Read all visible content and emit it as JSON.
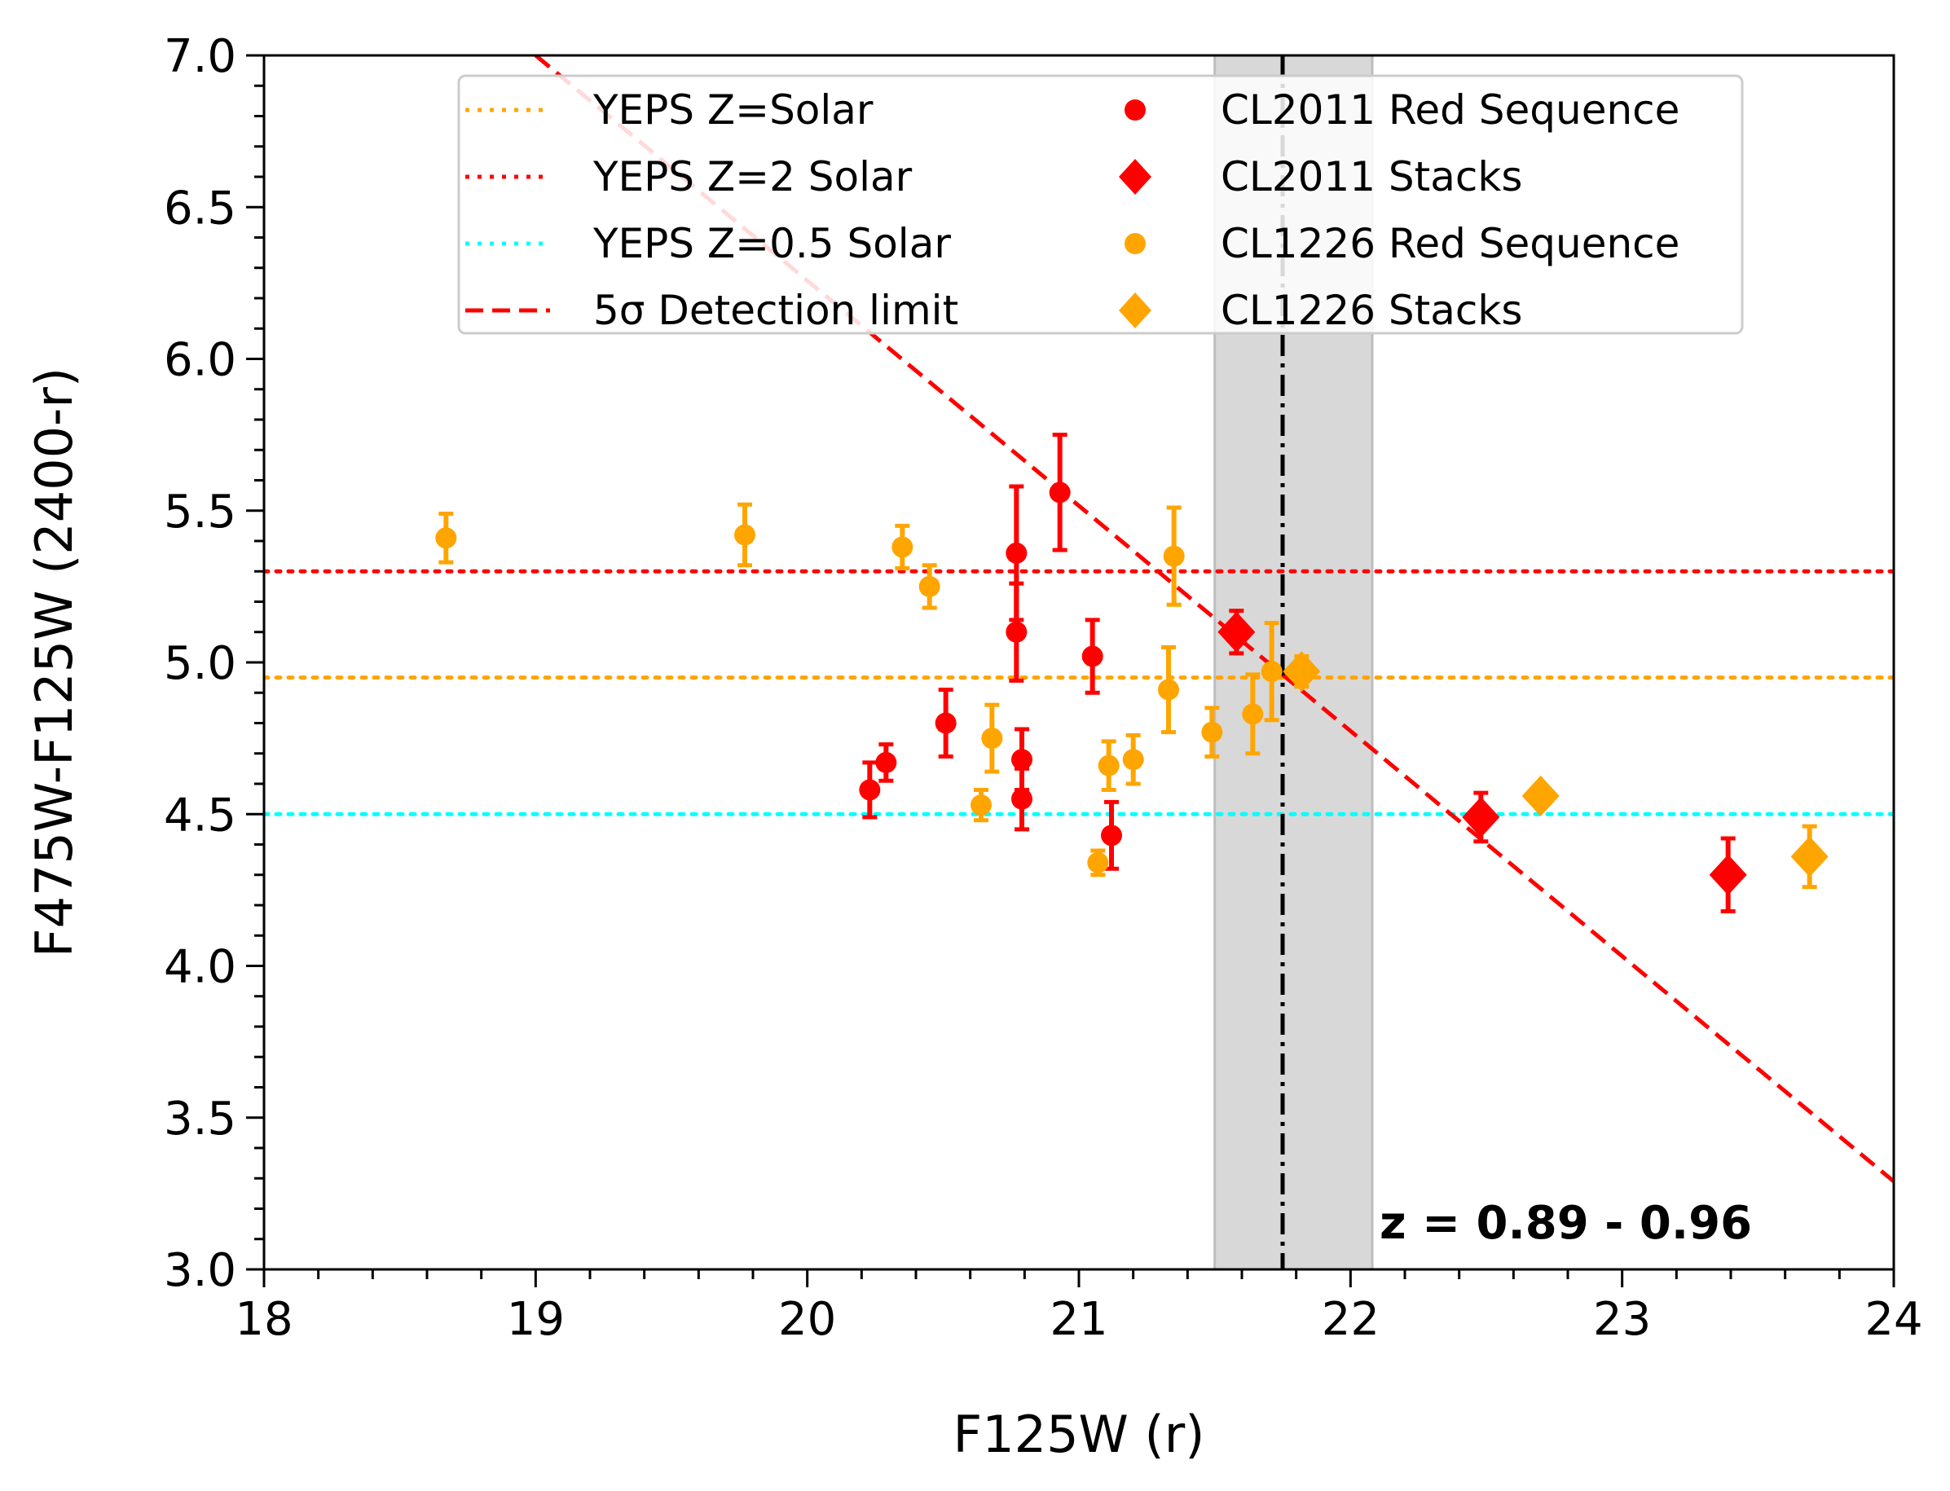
{
  "chart_data": {
    "type": "scatter",
    "xlabel": "F125W (r)",
    "ylabel": "F475W-F125W (2400-r)",
    "xlim": [
      18,
      24
    ],
    "ylim": [
      3.0,
      7.0
    ],
    "x_ticks": [
      "18",
      "19",
      "20",
      "21",
      "22",
      "23",
      "24"
    ],
    "y_ticks": [
      "3.0",
      "3.5",
      "4.0",
      "4.5",
      "5.0",
      "5.5",
      "6.0",
      "6.5",
      "7.0"
    ],
    "annotation": "z = 0.89 - 0.96",
    "redshift_band": {
      "x_start": 21.5,
      "x_end": 22.08,
      "color": "#d8d8d8"
    },
    "vertical_line": {
      "x": 21.75,
      "style": "dashdot",
      "color": "#000000"
    },
    "reference_lines": [
      {
        "name": "YEPS Z=Solar",
        "y": 4.95,
        "color": "#ffa500",
        "style": "dotted"
      },
      {
        "name": "YEPS Z=2 Solar",
        "y": 5.3,
        "color": "#ff0000",
        "style": "dotted"
      },
      {
        "name": "YEPS Z=0.5 Solar",
        "y": 4.5,
        "color": "#00ffff",
        "style": "dotted"
      }
    ],
    "detection_limit": {
      "name": "5σ Detection limit",
      "points": [
        [
          19.0,
          7.0
        ],
        [
          24.0,
          3.29
        ]
      ],
      "color": "#ff0000",
      "style": "dashed"
    },
    "series": [
      {
        "name": "CL2011 Red Sequence",
        "marker": "circle",
        "color": "#ff0000",
        "points": [
          {
            "x": 20.23,
            "y": 4.58,
            "err": 0.09
          },
          {
            "x": 20.29,
            "y": 4.67,
            "err": 0.06
          },
          {
            "x": 20.51,
            "y": 4.8,
            "err": 0.11
          },
          {
            "x": 20.77,
            "y": 5.36,
            "err": 0.22
          },
          {
            "x": 20.77,
            "y": 5.1,
            "err": 0.16
          },
          {
            "x": 20.79,
            "y": 4.68,
            "err": 0.1
          },
          {
            "x": 20.79,
            "y": 4.55,
            "err": 0.1
          },
          {
            "x": 20.93,
            "y": 5.56,
            "err": 0.19
          },
          {
            "x": 21.05,
            "y": 5.02,
            "err": 0.12
          },
          {
            "x": 21.12,
            "y": 4.43,
            "err": 0.11
          }
        ]
      },
      {
        "name": "CL2011 Stacks",
        "marker": "diamond",
        "color": "#ff0000",
        "points": [
          {
            "x": 21.58,
            "y": 5.1,
            "err": 0.07
          },
          {
            "x": 22.48,
            "y": 4.49,
            "err": 0.08
          },
          {
            "x": 23.39,
            "y": 4.3,
            "err": 0.12
          }
        ]
      },
      {
        "name": "CL1226 Red Sequence",
        "marker": "circle",
        "color": "#ffa500",
        "points": [
          {
            "x": 18.67,
            "y": 5.41,
            "err": 0.08
          },
          {
            "x": 19.77,
            "y": 5.42,
            "err": 0.1
          },
          {
            "x": 20.35,
            "y": 5.38,
            "err": 0.07
          },
          {
            "x": 20.45,
            "y": 5.25,
            "err": 0.07
          },
          {
            "x": 20.64,
            "y": 4.53,
            "err": 0.05
          },
          {
            "x": 20.68,
            "y": 4.75,
            "err": 0.11
          },
          {
            "x": 21.07,
            "y": 4.34,
            "err": 0.04
          },
          {
            "x": 21.11,
            "y": 4.66,
            "err": 0.08
          },
          {
            "x": 21.2,
            "y": 4.68,
            "err": 0.08
          },
          {
            "x": 21.33,
            "y": 4.91,
            "err": 0.14
          },
          {
            "x": 21.35,
            "y": 5.35,
            "err": 0.16
          },
          {
            "x": 21.49,
            "y": 4.77,
            "err": 0.08
          },
          {
            "x": 21.64,
            "y": 4.83,
            "err": 0.13
          },
          {
            "x": 21.71,
            "y": 4.97,
            "err": 0.16
          }
        ]
      },
      {
        "name": "CL1226 Stacks",
        "marker": "diamond",
        "color": "#ffa500",
        "points": [
          {
            "x": 21.82,
            "y": 4.97,
            "err": 0.05
          },
          {
            "x": 22.7,
            "y": 4.56,
            "err": 0.03
          },
          {
            "x": 23.69,
            "y": 4.36,
            "err": 0.1
          }
        ]
      }
    ],
    "legend": {
      "position": "upper-center",
      "left_column": [
        "YEPS Z=Solar",
        "YEPS Z=2 Solar",
        "YEPS Z=0.5 Solar",
        "5σ Detection limit"
      ],
      "right_column": [
        "CL2011 Red Sequence",
        "CL2011 Stacks",
        "CL1226 Red Sequence",
        "CL1226 Stacks"
      ]
    }
  }
}
